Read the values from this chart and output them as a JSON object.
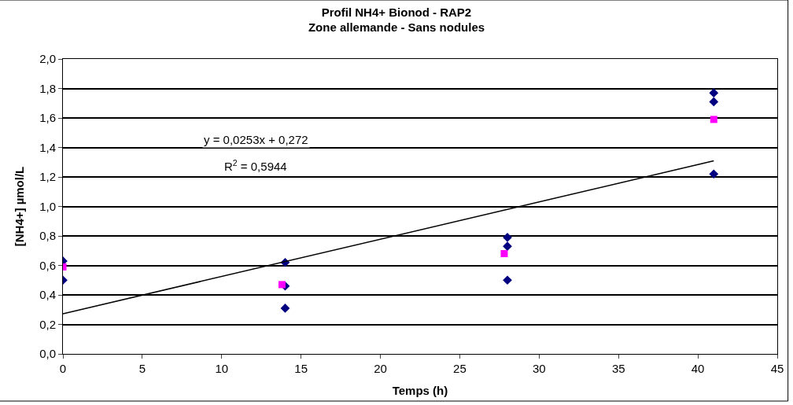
{
  "chart_data": {
    "type": "scatter",
    "title": "Profil NH4+ Bionod - RAP2",
    "subtitle": "Zone allemande - Sans nodules",
    "xlabel": "Temps (h)",
    "ylabel": "[NH4+] µmol/L",
    "xlim": [
      0,
      45
    ],
    "xticks": [
      0,
      5,
      10,
      15,
      20,
      25,
      30,
      35,
      40,
      45
    ],
    "ylim": [
      0,
      2
    ],
    "yticks": [
      {
        "value": 0,
        "label": "0,0"
      },
      {
        "value": 0.2,
        "label": "0,2"
      },
      {
        "value": 0.4,
        "label": "0,4"
      },
      {
        "value": 0.6,
        "label": "0,6"
      },
      {
        "value": 0.8,
        "label": "0,8"
      },
      {
        "value": 1,
        "label": "1,0"
      },
      {
        "value": 1.2,
        "label": "1,2"
      },
      {
        "value": 1.4,
        "label": "1,4"
      },
      {
        "value": 1.6,
        "label": "1,6"
      },
      {
        "value": 1.8,
        "label": "1,8"
      },
      {
        "value": 2,
        "label": "2,0"
      }
    ],
    "grid": "y",
    "series": [
      {
        "marker": "diamond",
        "color": "#000080",
        "x": [
          0,
          0,
          14,
          14,
          14,
          28,
          28,
          28,
          41,
          41,
          41
        ],
        "values": [
          0.63,
          0.5,
          0.62,
          0.46,
          0.31,
          0.79,
          0.73,
          0.5,
          1.77,
          1.71,
          1.22
        ]
      },
      {
        "marker": "square",
        "color": "#ff00ff",
        "x": [
          0,
          13.8,
          27.8,
          41
        ],
        "values": [
          0.59,
          0.47,
          0.68,
          1.59
        ]
      },
      {
        "type": "line",
        "marker": "none",
        "line_style": "solid",
        "color": "#000000",
        "x": [
          0,
          41
        ],
        "values": [
          0.272,
          1.309
        ]
      }
    ],
    "annotations": [
      "y = 0,0253x + 0,272",
      "R$^{2}$ = 0,5944"
    ]
  }
}
